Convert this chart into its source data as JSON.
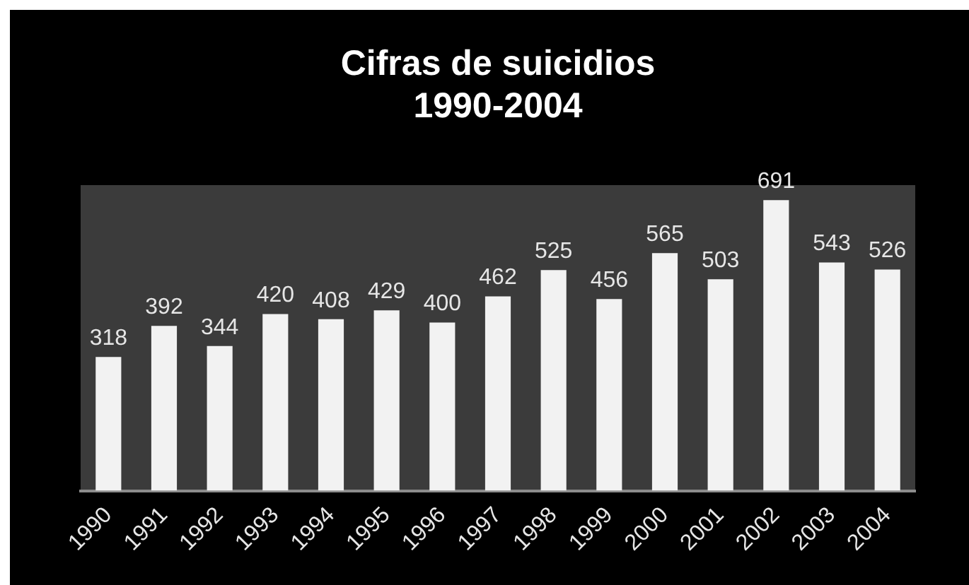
{
  "chart_data": {
    "type": "bar",
    "title": "Cifras de suicidios\n1990-2004",
    "categories": [
      "1990",
      "1991",
      "1992",
      "1993",
      "1994",
      "1995",
      "1996",
      "1997",
      "1998",
      "1999",
      "2000",
      "2001",
      "2002",
      "2003",
      "2004"
    ],
    "values": [
      318,
      392,
      344,
      420,
      408,
      429,
      400,
      462,
      525,
      456,
      565,
      503,
      691,
      543,
      526
    ],
    "color": "#f2f2f2",
    "data_labels": true,
    "grid": false,
    "legend": false
  }
}
